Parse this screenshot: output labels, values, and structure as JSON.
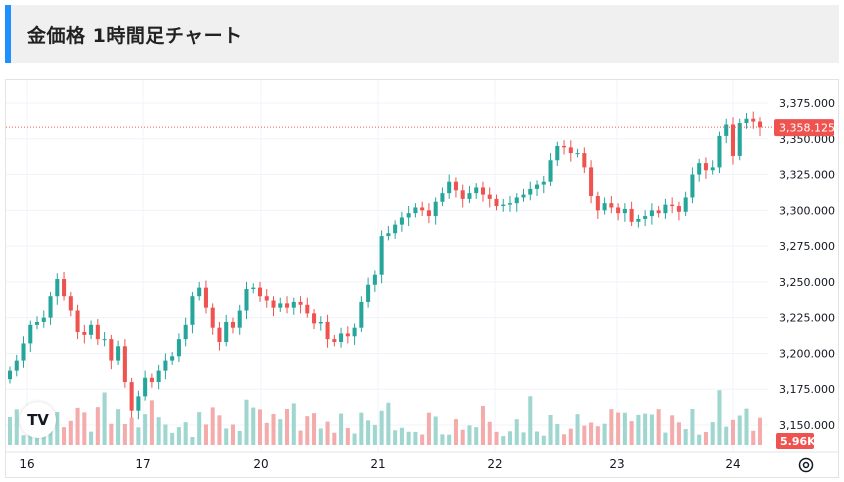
{
  "header": {
    "title": "金価格 1時間足チャート"
  },
  "logo_text": "TV",
  "colors": {
    "up": "#26a69a",
    "down": "#ef5350",
    "up_vol": "#9fd6d0",
    "down_vol": "#f4abab",
    "accent": "#1e90ff",
    "grid": "#f0f3fa"
  },
  "chart_data": {
    "type": "candlestick",
    "title": "",
    "ylim": [
      3135,
      3385
    ],
    "y_ticks": [
      "3,375.000",
      "3,350.000",
      "3,325.000",
      "3,300.000",
      "3,275.000",
      "3,250.000",
      "3,225.000",
      "3,200.000",
      "3,175.000",
      "3,150.000"
    ],
    "x_ticks": [
      "16",
      "17",
      "20",
      "21",
      "22",
      "23",
      "24"
    ],
    "last_price_label": "3,358.125",
    "last_price": 3358.125,
    "volume_label": "5.96K",
    "closes": [
      3188,
      3195,
      3207,
      3220,
      3222,
      3225,
      3240,
      3252,
      3240,
      3230,
      3215,
      3213,
      3220,
      3210,
      3210,
      3195,
      3205,
      3180,
      3160,
      3170,
      3183,
      3180,
      3188,
      3195,
      3198,
      3210,
      3220,
      3240,
      3246,
      3232,
      3218,
      3208,
      3222,
      3218,
      3230,
      3245,
      3246,
      3240,
      3237,
      3232,
      3235,
      3232,
      3236,
      3234,
      3228,
      3221,
      3222,
      3210,
      3208,
      3214,
      3212,
      3218,
      3236,
      3248,
      3255,
      3282,
      3284,
      3290,
      3295,
      3298,
      3302,
      3300,
      3296,
      3306,
      3312,
      3320,
      3314,
      3308,
      3312,
      3316,
      3311,
      3308,
      3303,
      3304,
      3305,
      3309,
      3311,
      3315,
      3318,
      3320,
      3335,
      3345,
      3344,
      3340,
      3340,
      3330,
      3310,
      3300,
      3305,
      3302,
      3298,
      3301,
      3292,
      3294,
      3296,
      3300,
      3298,
      3304,
      3303,
      3299,
      3309,
      3325,
      3333,
      3328,
      3330,
      3352,
      3360,
      3338,
      3361,
      3364,
      3362,
      3358
    ]
  }
}
